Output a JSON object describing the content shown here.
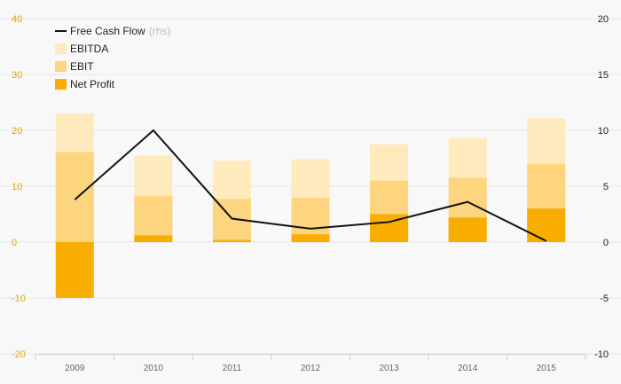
{
  "chart_data": {
    "type": "bar",
    "categories": [
      "2009",
      "2010",
      "2011",
      "2012",
      "2013",
      "2014",
      "2015"
    ],
    "series": [
      {
        "name": "EBITDA",
        "axis": "left",
        "kind": "bar",
        "color": "#feeabd",
        "values": [
          23,
          15.5,
          14.6,
          14.8,
          17.5,
          18.6,
          22.2
        ]
      },
      {
        "name": "EBIT",
        "axis": "left",
        "kind": "bar",
        "color": "#fdd57e",
        "values": [
          16.1,
          8.3,
          7.7,
          7.9,
          11,
          11.5,
          14
        ]
      },
      {
        "name": "Net Profit",
        "axis": "left",
        "kind": "bar",
        "color": "#f8ad00",
        "values": [
          -10,
          1.2,
          0.4,
          1.4,
          5,
          4.4,
          6
        ]
      },
      {
        "name": "Free Cash Flow",
        "axis": "right",
        "kind": "line",
        "color": "#111111",
        "values": [
          3.8,
          10,
          2.1,
          1.2,
          1.8,
          3.6,
          0.1
        ]
      }
    ],
    "y_left": {
      "ylim": [
        -20,
        40
      ],
      "ticks": [
        "-20",
        "-10",
        "0",
        "10",
        "20",
        "30",
        "40"
      ],
      "tick_color": "#e0a800"
    },
    "y_right": {
      "ylim": [
        -10,
        20
      ],
      "ticks": [
        "-10",
        "-5",
        "0",
        "5",
        "10",
        "15",
        "20"
      ]
    },
    "legend": {
      "position": "top-left",
      "items": [
        {
          "label": "Free Cash Flow",
          "suffix": "(rhs)",
          "marker": "line",
          "color": "#111111"
        },
        {
          "label": "EBITDA",
          "suffix": "",
          "marker": "box",
          "color": "#feeabd"
        },
        {
          "label": "EBIT",
          "suffix": "",
          "marker": "box",
          "color": "#fdd57e"
        },
        {
          "label": "Net Profit",
          "suffix": "",
          "marker": "box",
          "color": "#f8ad00"
        }
      ]
    },
    "grid": true
  }
}
